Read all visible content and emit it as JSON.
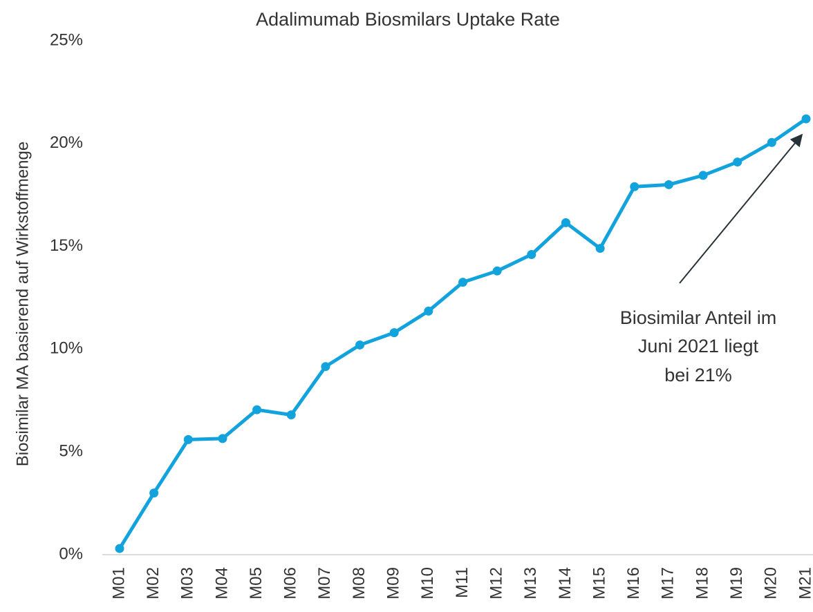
{
  "chart_data": {
    "type": "line",
    "title": "Adalimumab Biosmilars Uptake Rate",
    "y_label": "Biosimilar MA basierend auf Wirkstoffmenge",
    "categories": [
      "M01",
      "M02",
      "M03",
      "M04",
      "M05",
      "M06",
      "M07",
      "M08",
      "M09",
      "M10",
      "M11",
      "M12",
      "M13",
      "M14",
      "M15",
      "M16",
      "M17",
      "M18",
      "M19",
      "M20",
      "M21"
    ],
    "values": [
      0.3,
      3.0,
      5.6,
      5.65,
      7.05,
      6.8,
      9.15,
      10.2,
      10.8,
      11.85,
      13.25,
      13.8,
      14.6,
      16.15,
      14.9,
      17.9,
      18.0,
      18.45,
      19.1,
      20.05,
      21.2
    ],
    "color": "#12a3dd",
    "ylim": [
      0,
      25
    ],
    "yticks": [
      {
        "value": 0,
        "label": "0%"
      },
      {
        "value": 5,
        "label": "5%"
      },
      {
        "value": 10,
        "label": "10%"
      },
      {
        "value": 15,
        "label": "15%"
      },
      {
        "value": 20,
        "label": "20%"
      },
      {
        "value": 25,
        "label": "25%"
      }
    ],
    "grid": false,
    "annotation": [
      "Biosimilar Anteil im",
      "Juni 2021 liegt",
      "bei 21%"
    ]
  }
}
